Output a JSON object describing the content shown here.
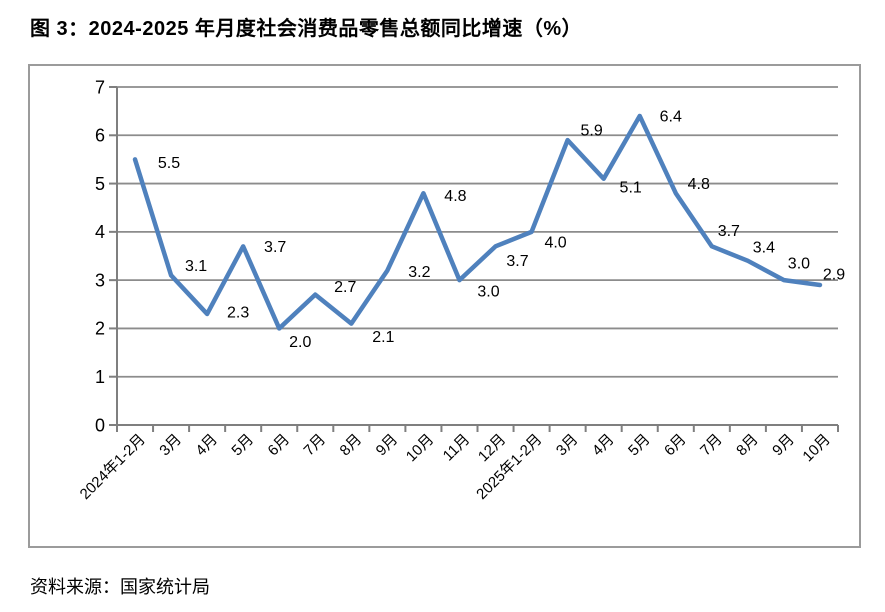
{
  "title": "图 3：2024-2025 年月度社会消费品零售总额同比增速（%）",
  "source": "资料来源：国家统计局",
  "colors": {
    "line": "#4F81BD",
    "grid": "#8C8C8C",
    "axis": "#7F7F7F",
    "text": "#000000",
    "frame": "#9B9B9B"
  },
  "chart_data": {
    "type": "line",
    "title": "图 3：2024-2025 年月度社会消费品零售总额同比增速（%）",
    "xlabel": "",
    "ylabel": "",
    "categories": [
      "2024年1-2月",
      "3月",
      "4月",
      "5月",
      "6月",
      "7月",
      "8月",
      "9月",
      "10月",
      "11月",
      "12月",
      "2025年1-2月",
      "3月",
      "4月",
      "5月",
      "6月",
      "7月",
      "8月",
      "9月",
      "10月"
    ],
    "values": [
      5.5,
      3.1,
      2.3,
      3.7,
      2.0,
      2.7,
      2.1,
      3.2,
      4.8,
      3.0,
      3.7,
      4.0,
      5.9,
      5.1,
      6.4,
      4.8,
      3.7,
      3.4,
      3.0,
      2.9
    ],
    "data_labels": [
      "5.5",
      "3.1",
      "2.3",
      "3.7",
      "2.0",
      "2.7",
      "2.1",
      "3.2",
      "4.8",
      "3.0",
      "3.7",
      "4.0",
      "5.9",
      "5.1",
      "6.4",
      "4.8",
      "3.7",
      "3.4",
      "3.0",
      "2.9"
    ],
    "ylim": [
      0,
      7
    ],
    "ytick_step": 1,
    "yticks": [
      0,
      1,
      2,
      3,
      4,
      5,
      6,
      7
    ],
    "grid": true,
    "legend": false,
    "source": "资料来源：国家统计局"
  }
}
